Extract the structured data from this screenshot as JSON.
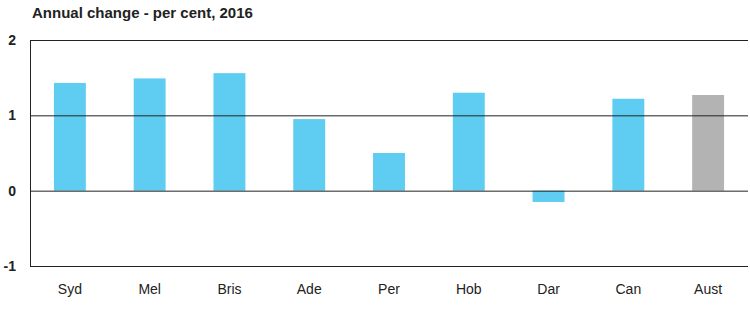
{
  "chart_data": {
    "type": "bar",
    "title": "Annual change - per cent, 2016",
    "categories": [
      "Syd",
      "Mel",
      "Bris",
      "Ade",
      "Per",
      "Hob",
      "Dar",
      "Can",
      "Aust"
    ],
    "values": [
      1.43,
      1.49,
      1.56,
      0.95,
      0.5,
      1.3,
      -0.15,
      1.22,
      1.27
    ],
    "colors": [
      "#5ecdf1",
      "#5ecdf1",
      "#5ecdf1",
      "#5ecdf1",
      "#5ecdf1",
      "#5ecdf1",
      "#5ecdf1",
      "#5ecdf1",
      "#b3b3b3"
    ],
    "ylim": [
      -1,
      2
    ],
    "yticks": [
      -1,
      0,
      1,
      2
    ],
    "grid": true
  }
}
